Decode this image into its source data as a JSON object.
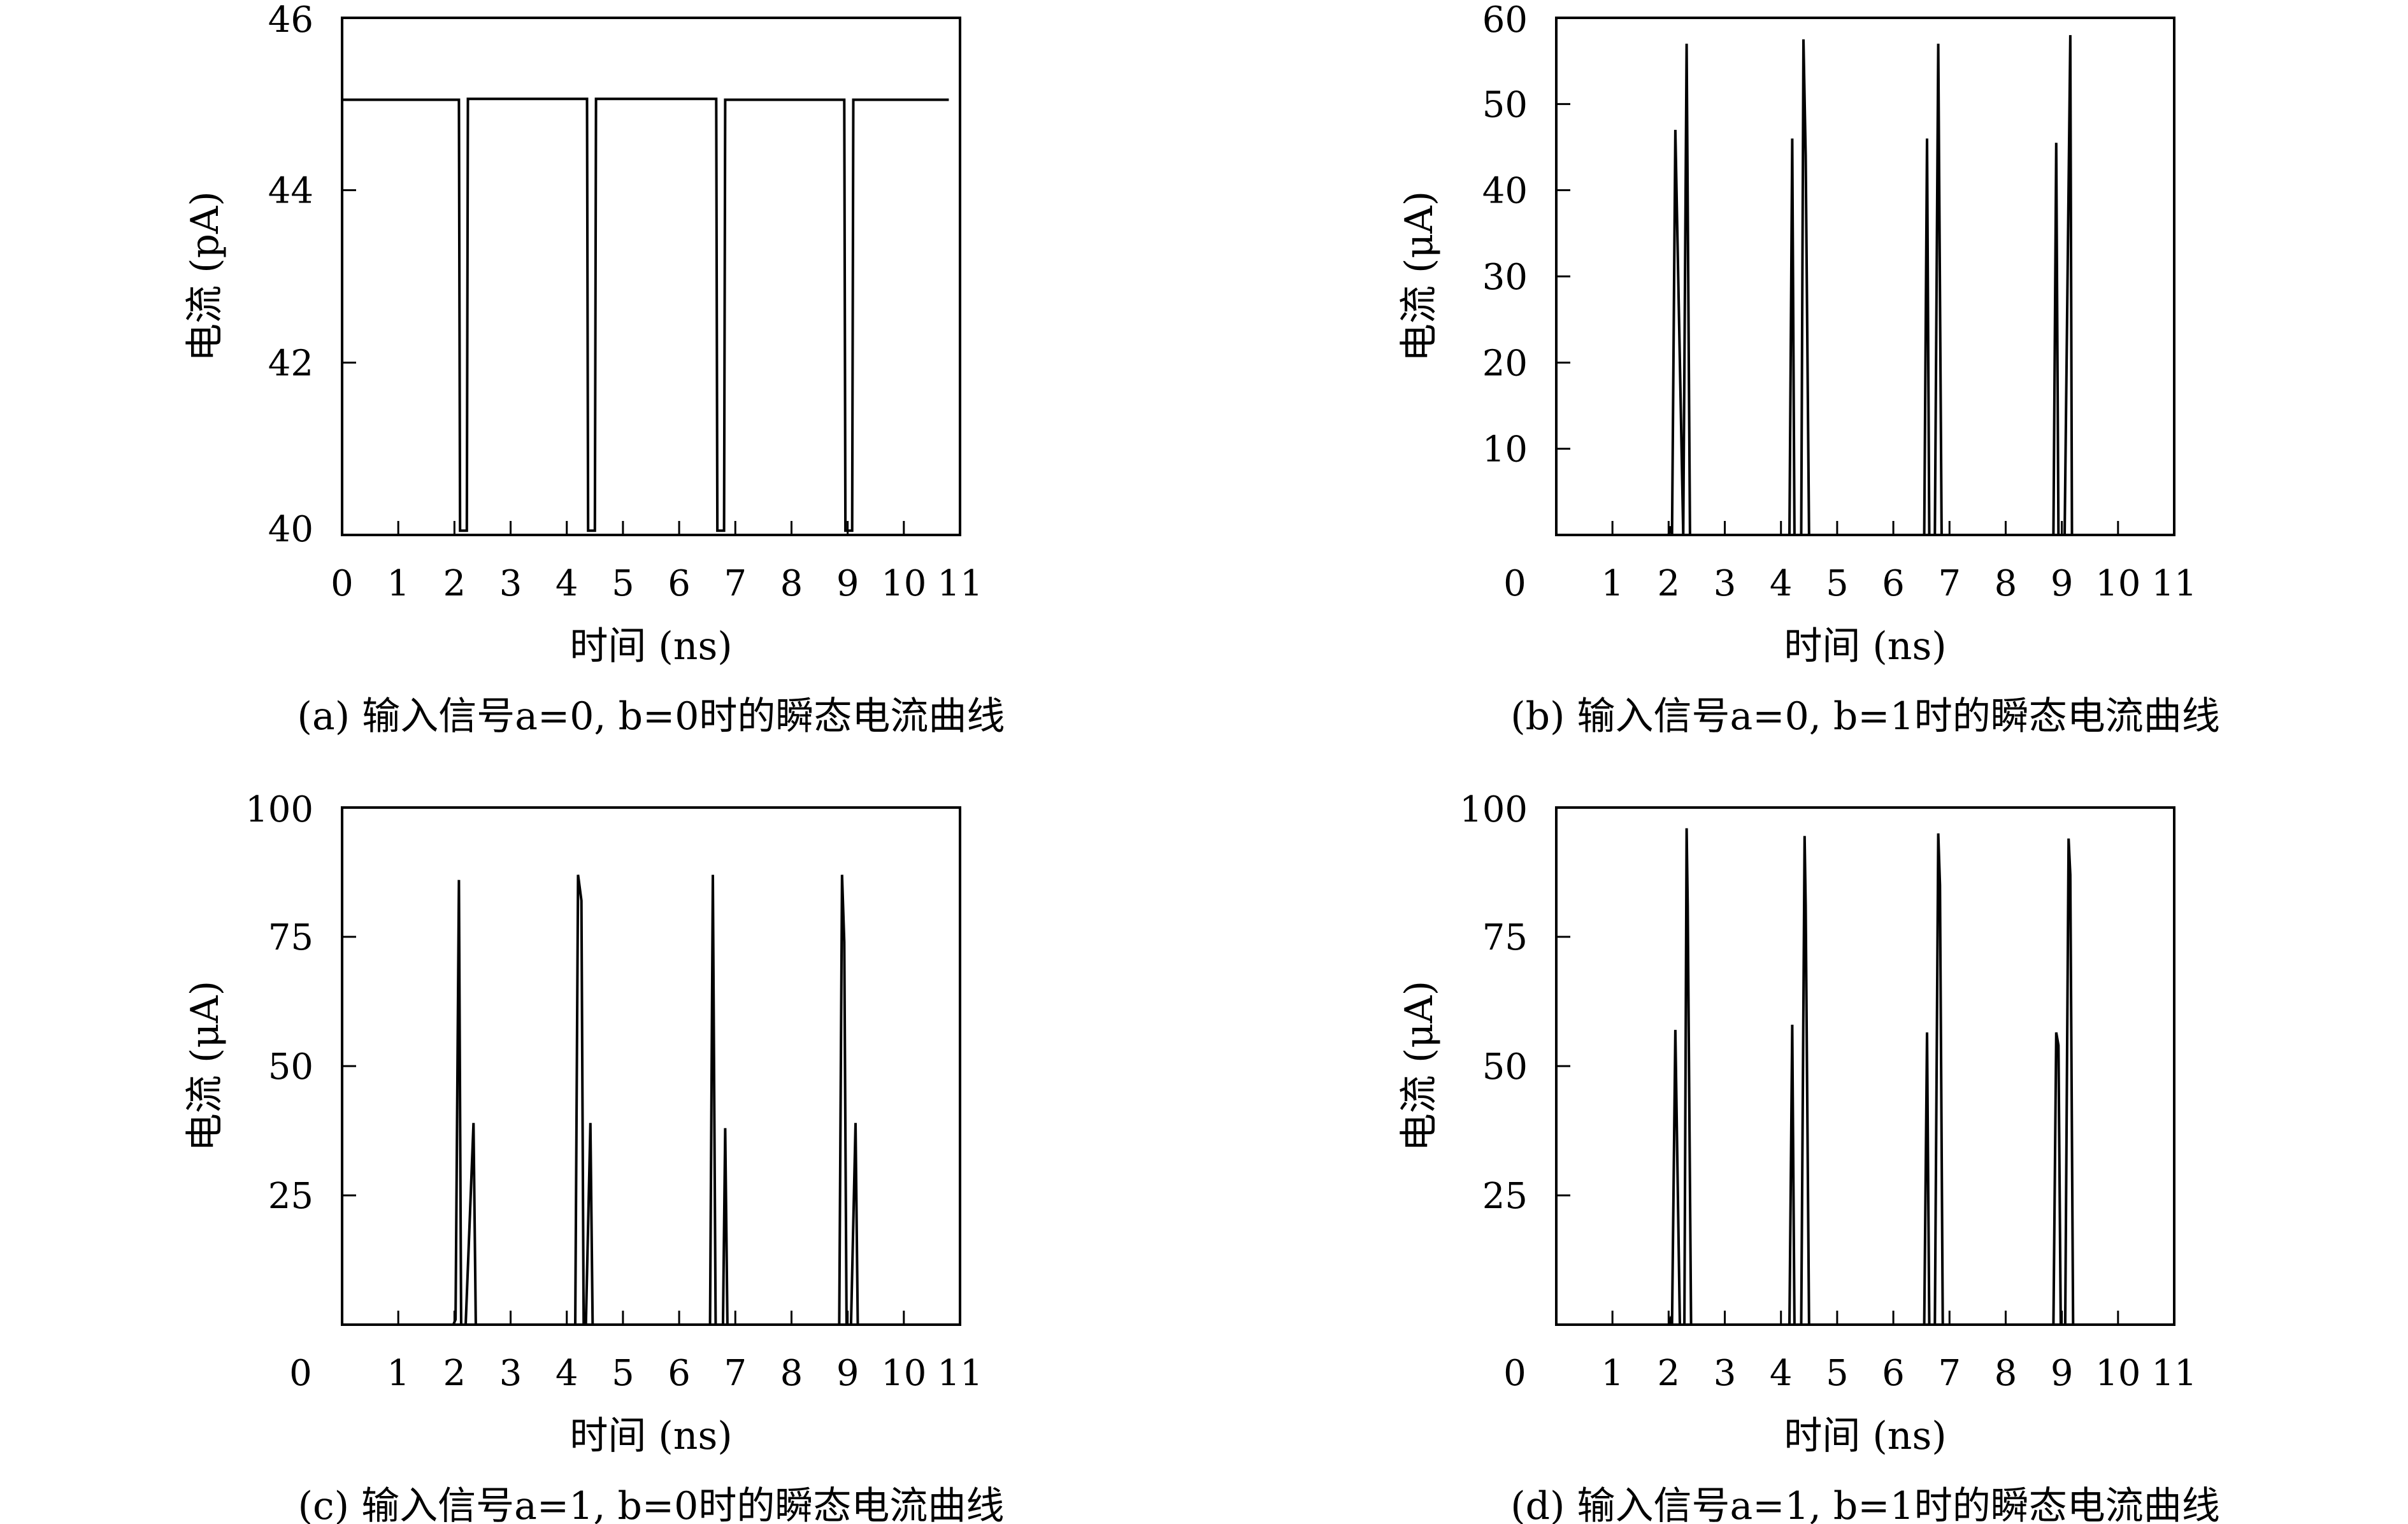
{
  "chart_data": [
    {
      "id": "a",
      "type": "line",
      "title": "",
      "caption": "(a) 输入信号a=0, b=0时的瞬态电流曲线",
      "xlabel": "时间 (ns)",
      "ylabel": "电流 (pA)",
      "xlim": [
        0,
        11
      ],
      "ylim": [
        40,
        46
      ],
      "xticks": [
        "0",
        "1",
        "2",
        "3",
        "4",
        "5",
        "6",
        "7",
        "8",
        "9",
        "10",
        "11"
      ],
      "yticks": [
        40,
        42,
        44,
        46
      ],
      "x0_label_outside": false,
      "grid": false,
      "series": [
        {
          "x": [
            0,
            2.08,
            2.1,
            2.22,
            2.24,
            4.36,
            4.38,
            4.5,
            4.52,
            6.66,
            6.68,
            6.8,
            6.82,
            8.94,
            8.96,
            9.08,
            9.1,
            10.8
          ],
          "y": [
            45.05,
            45.05,
            40.05,
            40.05,
            45.06,
            45.06,
            40.05,
            40.05,
            45.06,
            45.06,
            40.05,
            40.05,
            45.05,
            45.05,
            40.05,
            40.05,
            45.05,
            45.05
          ]
        }
      ]
    },
    {
      "id": "b",
      "type": "line",
      "title": "",
      "caption": "(b) 输入信号a=0, b=1时的瞬态电流曲线",
      "xlabel": "时间 (ns)",
      "ylabel": "电流 (μA)",
      "xlim": [
        0,
        11
      ],
      "ylim": [
        0,
        60
      ],
      "xticks": [
        "0",
        "1",
        "2",
        "3",
        "4",
        "5",
        "6",
        "7",
        "8",
        "9",
        "10",
        "11"
      ],
      "yticks": [
        10,
        20,
        30,
        40,
        50,
        60
      ],
      "x0_label_outside": true,
      "grid": false,
      "series": [
        {
          "x": [
            1.95,
            2.0,
            2.03,
            2.06,
            2.12,
            2.26,
            2.32,
            2.38,
            2.45,
            4.1,
            4.15,
            4.2,
            4.24,
            4.28,
            4.36,
            4.4,
            4.44,
            4.5,
            4.52,
            6.5,
            6.55,
            6.6,
            6.64,
            6.68,
            6.74,
            6.8,
            6.86,
            6.9,
            6.92,
            8.8,
            8.85,
            8.9,
            8.94,
            8.98,
            9.05,
            9.15,
            9.18,
            9.22,
            9.25
          ],
          "y": [
            0,
            0,
            1,
            0,
            47,
            0,
            57,
            0,
            0,
            0,
            0,
            46,
            0,
            0,
            0,
            57.5,
            44,
            0,
            0,
            0,
            0,
            46,
            0,
            0,
            0,
            57,
            0,
            0,
            0,
            0,
            0,
            45.5,
            0,
            0,
            0,
            58,
            0,
            0,
            0
          ]
        }
      ]
    },
    {
      "id": "c",
      "type": "line",
      "title": "",
      "caption": "(c) 输入信号a=1, b=0时的瞬态电流曲线",
      "xlabel": "时间 (ns)",
      "ylabel": "电流 (μA)",
      "xlim": [
        0,
        11
      ],
      "ylim": [
        0,
        100
      ],
      "xticks": [
        "0",
        "1",
        "2",
        "3",
        "4",
        "5",
        "6",
        "7",
        "8",
        "9",
        "10",
        "11"
      ],
      "yticks": [
        25,
        50,
        75,
        100
      ],
      "x0_label_outside": true,
      "grid": false,
      "series": [
        {
          "x": [
            1.9,
            1.98,
            2.02,
            2.08,
            2.12,
            2.2,
            2.34,
            2.38,
            2.42,
            2.45,
            4.1,
            4.15,
            4.2,
            4.26,
            4.3,
            4.34,
            4.42,
            4.46,
            4.5,
            4.52,
            6.5,
            6.55,
            6.6,
            6.65,
            6.7,
            6.78,
            6.82,
            6.86,
            6.9,
            6.92,
            8.8,
            8.85,
            8.9,
            8.94,
            8.98,
            9.06,
            9.14,
            9.18,
            9.22,
            9.25
          ],
          "y": [
            0,
            0,
            1,
            86,
            0,
            0,
            39,
            0,
            0,
            0,
            0,
            0,
            87,
            82,
            0,
            0,
            39,
            0,
            0,
            0,
            0,
            0,
            87,
            0,
            0,
            0,
            38,
            0,
            0,
            0,
            0,
            0,
            87,
            74,
            0,
            0,
            39,
            0,
            0,
            0
          ]
        }
      ]
    },
    {
      "id": "d",
      "type": "line",
      "title": "",
      "caption": "(d) 输入信号a=1, b=1时的瞬态电流曲线",
      "xlabel": "时间 (ns)",
      "ylabel": "电流 (μA)",
      "xlim": [
        0,
        11
      ],
      "ylim": [
        0,
        100
      ],
      "xticks": [
        "0",
        "1",
        "2",
        "3",
        "4",
        "5",
        "6",
        "7",
        "8",
        "9",
        "10",
        "11"
      ],
      "yticks": [
        25,
        50,
        75,
        100
      ],
      "x0_label_outside": true,
      "grid": false,
      "series": [
        {
          "x": [
            1.95,
            2.0,
            2.03,
            2.06,
            2.12,
            2.2,
            2.28,
            2.32,
            2.34,
            2.4,
            2.45,
            4.1,
            4.15,
            4.2,
            4.24,
            4.28,
            4.36,
            4.42,
            4.44,
            4.5,
            4.52,
            6.5,
            6.55,
            6.6,
            6.64,
            6.68,
            6.74,
            6.8,
            6.83,
            6.88,
            6.92,
            8.8,
            8.85,
            8.9,
            8.94,
            8.98,
            9.06,
            9.12,
            9.15,
            9.2,
            9.25
          ],
          "y": [
            0,
            0,
            1,
            0,
            57,
            0,
            0,
            96,
            81,
            0,
            0,
            0,
            0,
            58,
            0,
            0,
            0,
            94.5,
            81,
            0,
            0,
            0,
            0,
            56.5,
            0,
            0,
            0,
            95,
            85,
            0,
            0,
            0,
            0,
            56.5,
            54,
            0,
            0,
            94,
            87,
            0,
            0
          ]
        }
      ]
    }
  ]
}
